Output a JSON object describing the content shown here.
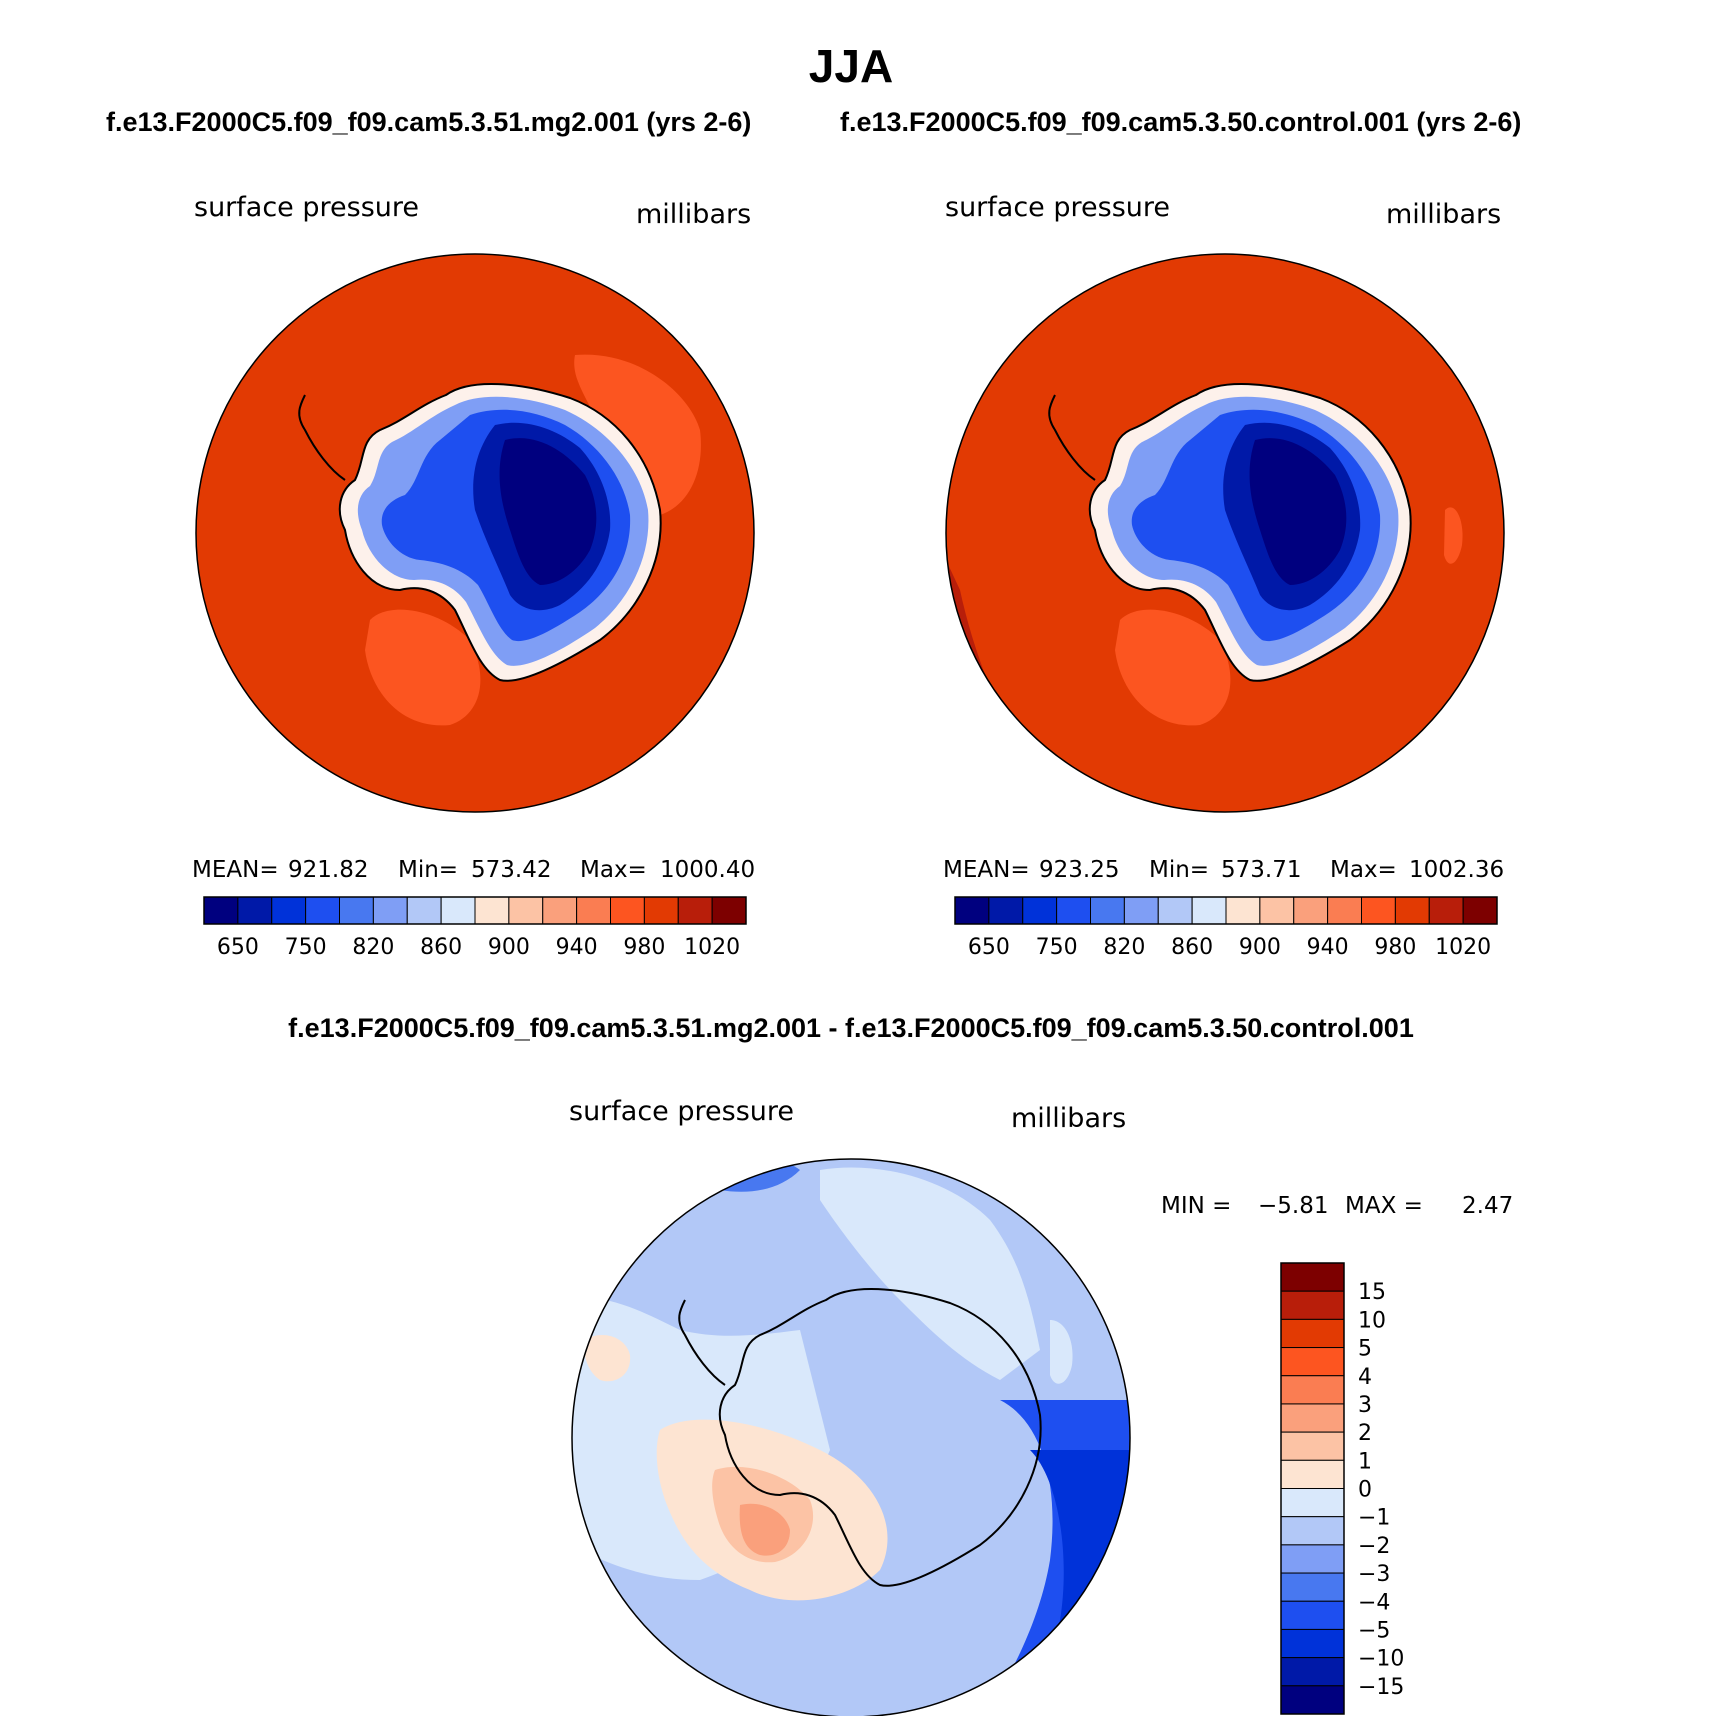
{
  "title": "JJA",
  "top_left_case": "f.e13.F2000C5.f09_f09.cam5.3.51.mg2.001 (yrs 2-6)",
  "top_right_case": "f.e13.F2000C5.f09_f09.cam5.3.50.control.001 (yrs 2-6)",
  "diff_title": "f.e13.F2000C5.f09_f09.cam5.3.51.mg2.001 - f.e13.F2000C5.f09_f09.cam5.3.50.control.001",
  "colors": {
    "ocean_high": "#e23a03",
    "ocean_band": "#fc5520",
    "abs_colorbar": [
      "#00007f",
      "#0019a8",
      "#0032d9",
      "#1e4ff0",
      "#4878f0",
      "#7f9ef5",
      "#b2c8f7",
      "#d9e8fb",
      "#fde4d2",
      "#fcc3a5",
      "#faa07c",
      "#fa7d52",
      "#fd5520",
      "#e23a03",
      "#b81e0a",
      "#7d0000"
    ],
    "diff_colorbar": [
      "#00007f",
      "#0019a8",
      "#0032d9",
      "#1e4ff0",
      "#4878f0",
      "#7f9ef5",
      "#b2c8f7",
      "#d9e8fb",
      "#fde4d2",
      "#fcc3a5",
      "#faa07c",
      "#fa7d52",
      "#fd5520",
      "#e23a03",
      "#b81e0a",
      "#7d0000"
    ]
  },
  "chart_data": [
    {
      "type": "heatmap",
      "projection": "south-polar-stereographic",
      "title": "f.e13.F2000C5.f09_f09.cam5.3.51.mg2.001 (yrs 2-6)",
      "left_label": "surface pressure",
      "right_label": "millibars",
      "stats": {
        "mean_label": "MEAN=",
        "mean": "921.82",
        "min_label": "Min=",
        "min": "573.42",
        "max_label": "Max=",
        "max": "1000.40"
      },
      "colorbar": {
        "orientation": "horizontal",
        "levels": [
          650,
          700,
          750,
          800,
          820,
          840,
          860,
          880,
          900,
          920,
          940,
          960,
          980,
          1000,
          1020
        ],
        "tick_labels": [
          "650",
          "750",
          "820",
          "860",
          "900",
          "940",
          "980",
          "1020"
        ]
      }
    },
    {
      "type": "heatmap",
      "projection": "south-polar-stereographic",
      "title": "f.e13.F2000C5.f09_f09.cam5.3.50.control.001 (yrs 2-6)",
      "left_label": "surface pressure",
      "right_label": "millibars",
      "stats": {
        "mean_label": "MEAN=",
        "mean": "923.25",
        "min_label": "Min=",
        "min": "573.71",
        "max_label": "Max=",
        "max": "1002.36"
      },
      "colorbar": {
        "orientation": "horizontal",
        "levels": [
          650,
          700,
          750,
          800,
          820,
          840,
          860,
          880,
          900,
          920,
          940,
          960,
          980,
          1000,
          1020
        ],
        "tick_labels": [
          "650",
          "750",
          "820",
          "860",
          "900",
          "940",
          "980",
          "1020"
        ]
      }
    },
    {
      "type": "heatmap",
      "projection": "south-polar-stereographic",
      "title": "f.e13.F2000C5.f09_f09.cam5.3.51.mg2.001 - f.e13.F2000C5.f09_f09.cam5.3.50.control.001",
      "left_label": "surface pressure",
      "right_label": "millibars",
      "stats": {
        "min_label": "MIN =",
        "min": "−5.81",
        "max_label": "MAX =",
        "max": "2.47"
      },
      "colorbar": {
        "orientation": "vertical",
        "levels": [
          15,
          10,
          5,
          4,
          3,
          2,
          1,
          0,
          -1,
          -2,
          -3,
          -4,
          -5,
          -10,
          -15
        ],
        "tick_labels": [
          "15",
          "10",
          "5",
          "4",
          "3",
          "2",
          "1",
          "0",
          "−1",
          "−2",
          "−3",
          "−4",
          "−5",
          "−10",
          "−15"
        ]
      }
    }
  ]
}
